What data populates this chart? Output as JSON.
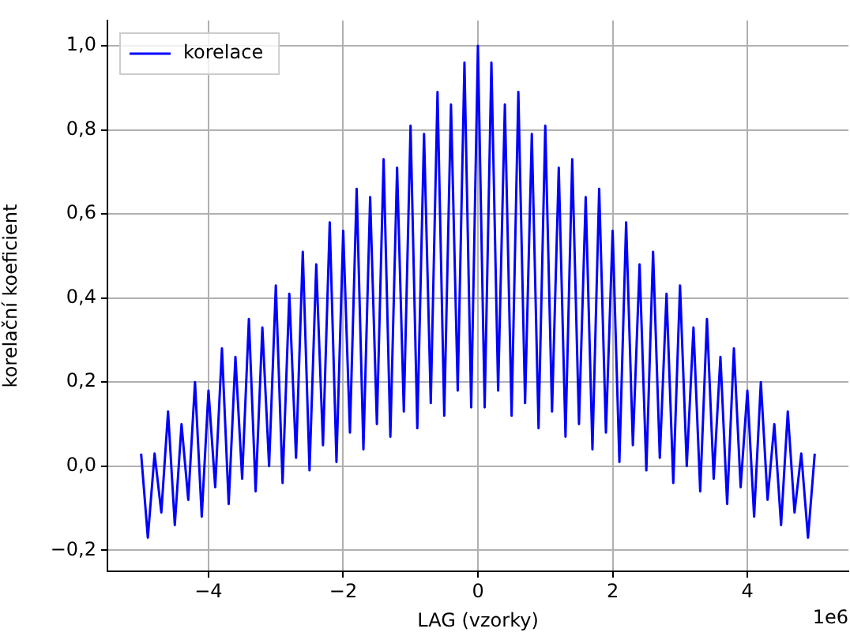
{
  "chart_data": {
    "type": "line",
    "xlabel": "LAG (vzorky)",
    "ylabel": "korelační koeficient",
    "annotations": [
      "1e6"
    ],
    "legend": "top left",
    "grid": true,
    "x": [
      -5.0,
      -4.9,
      -4.8,
      -4.7,
      -4.6,
      -4.5,
      -4.4,
      -4.3,
      -4.2,
      -4.1,
      -4.0,
      -3.9,
      -3.8,
      -3.7,
      -3.6,
      -3.5,
      -3.4,
      -3.3,
      -3.2,
      -3.1,
      -3.0,
      -2.9,
      -2.8,
      -2.7,
      -2.6,
      -2.5,
      -2.4,
      -2.3,
      -2.2,
      -2.1,
      -2.0,
      -1.9,
      -1.8,
      -1.7,
      -1.6,
      -1.5,
      -1.4,
      -1.3,
      -1.2,
      -1.1,
      -1.0,
      -0.9,
      -0.8,
      -0.7,
      -0.6,
      -0.5,
      -0.4,
      -0.3,
      -0.2,
      -0.1,
      0.0,
      0.1,
      0.2,
      0.3,
      0.4,
      0.5,
      0.6,
      0.7,
      0.8,
      0.9,
      1.0,
      1.1,
      1.2,
      1.3,
      1.4,
      1.5,
      1.6,
      1.7,
      1.8,
      1.9,
      2.0,
      2.1,
      2.2,
      2.3,
      2.4,
      2.5,
      2.6,
      2.7,
      2.8,
      2.9,
      3.0,
      3.1,
      3.2,
      3.3,
      3.4,
      3.5,
      3.6,
      3.7,
      3.8,
      3.9,
      4.0,
      4.1,
      4.2,
      4.3,
      4.4,
      4.5,
      4.6,
      4.7,
      4.8,
      4.9,
      5.0
    ],
    "series": [
      {
        "name": "korelace",
        "color": "#0000ff",
        "values": [
          0.03,
          -0.17,
          0.03,
          -0.11,
          0.13,
          -0.14,
          0.1,
          -0.08,
          0.2,
          -0.12,
          0.18,
          -0.05,
          0.28,
          -0.09,
          0.26,
          -0.03,
          0.35,
          -0.06,
          0.33,
          0.0,
          0.43,
          -0.04,
          0.41,
          0.02,
          0.51,
          -0.01,
          0.48,
          0.05,
          0.58,
          0.01,
          0.56,
          0.08,
          0.66,
          0.04,
          0.64,
          0.1,
          0.73,
          0.07,
          0.71,
          0.13,
          0.81,
          0.09,
          0.79,
          0.15,
          0.89,
          0.12,
          0.86,
          0.18,
          0.96,
          0.14,
          1.0,
          0.14,
          0.96,
          0.18,
          0.86,
          0.12,
          0.89,
          0.15,
          0.79,
          0.09,
          0.81,
          0.13,
          0.71,
          0.07,
          0.73,
          0.1,
          0.64,
          0.04,
          0.66,
          0.08,
          0.56,
          0.01,
          0.58,
          0.05,
          0.48,
          -0.01,
          0.51,
          0.02,
          0.41,
          -0.04,
          0.43,
          0.0,
          0.33,
          -0.06,
          0.35,
          -0.03,
          0.26,
          -0.09,
          0.28,
          -0.05,
          0.18,
          -0.12,
          0.2,
          -0.08,
          0.1,
          -0.14,
          0.13,
          -0.11,
          0.03,
          -0.17,
          0.03
        ]
      }
    ],
    "xlim": [
      -5.5,
      5.5
    ],
    "xticks": [
      {
        "value": -4,
        "label": "−4"
      },
      {
        "value": -2,
        "label": "−2"
      },
      0,
      2,
      4
    ],
    "ylim": [
      -0.25,
      1.06
    ],
    "yticks": [
      {
        "value": -0.2,
        "label": "−0,2"
      },
      {
        "value": 0,
        "label": "0,0"
      },
      {
        "value": 0.2,
        "label": "0,2"
      },
      {
        "value": 0.4,
        "label": "0,4"
      },
      {
        "value": 0.6,
        "label": "0,6"
      },
      {
        "value": 0.8,
        "label": "0,8"
      },
      {
        "value": 1.0,
        "label": "1,0"
      }
    ]
  }
}
